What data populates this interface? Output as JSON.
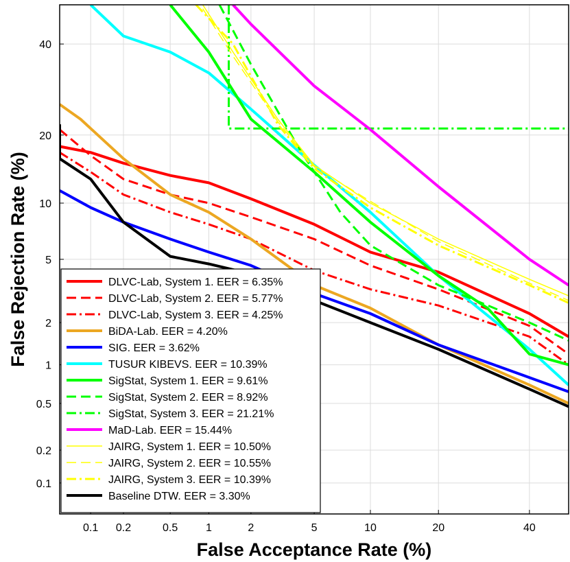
{
  "chart_data": {
    "type": "line",
    "title": "",
    "xlabel": "False Acceptance Rate (%)",
    "ylabel": "False Rejection Rate (%)",
    "scale": "normal-deviate (DET)",
    "xlim": [
      0.05,
      50
    ],
    "ylim": [
      0.05,
      50
    ],
    "x_ticks": [
      0.1,
      0.2,
      0.5,
      1,
      2,
      5,
      10,
      20,
      40
    ],
    "x_tick_labels": [
      "0.1",
      "0.2",
      "0.5",
      "1",
      "2",
      "5",
      "10",
      "20",
      "40"
    ],
    "y_ticks": [
      0.1,
      0.2,
      0.5,
      1,
      2,
      5,
      10,
      20,
      40
    ],
    "y_tick_labels": [
      "0.1",
      "0.2",
      "0.5",
      "1",
      "2",
      "5",
      "10",
      "20",
      "40"
    ],
    "grid": true,
    "legend_position": "bottom-left",
    "series": [
      {
        "name": "DLVC-Lab, System 1. EER = 6.35%",
        "color": "#ff0000",
        "style": "solid",
        "width": 4,
        "points": [
          [
            0.05,
            18
          ],
          [
            0.1,
            17
          ],
          [
            0.2,
            15.3
          ],
          [
            0.5,
            13.5
          ],
          [
            1,
            12.5
          ],
          [
            2,
            10.5
          ],
          [
            5,
            7.8
          ],
          [
            10,
            5.5
          ],
          [
            20,
            4.2
          ],
          [
            40,
            2.3
          ],
          [
            50,
            1.6
          ]
        ]
      },
      {
        "name": "DLVC-Lab, System 2. EER = 5.77%",
        "color": "#ff0000",
        "style": "dashed",
        "width": 3,
        "points": [
          [
            0.05,
            21
          ],
          [
            0.1,
            16.5
          ],
          [
            0.2,
            13
          ],
          [
            0.5,
            11
          ],
          [
            1,
            10
          ],
          [
            2,
            8.5
          ],
          [
            5,
            6.5
          ],
          [
            10,
            4.6
          ],
          [
            20,
            3.3
          ],
          [
            40,
            1.9
          ],
          [
            50,
            1.2
          ]
        ]
      },
      {
        "name": "DLVC-Lab, System 3. EER = 4.25%",
        "color": "#ff0000",
        "style": "dashdot",
        "width": 3,
        "points": [
          [
            0.05,
            17
          ],
          [
            0.1,
            14
          ],
          [
            0.2,
            11
          ],
          [
            0.5,
            9
          ],
          [
            1,
            7.8
          ],
          [
            2,
            6.5
          ],
          [
            5,
            4.3
          ],
          [
            10,
            3.3
          ],
          [
            20,
            2.6
          ],
          [
            40,
            1.6
          ],
          [
            50,
            1
          ]
        ]
      },
      {
        "name": "BiDA-Lab. EER = 4.20%",
        "color": "#eca722",
        "style": "solid",
        "width": 4,
        "points": [
          [
            0.05,
            26
          ],
          [
            0.08,
            23
          ],
          [
            0.2,
            16
          ],
          [
            0.5,
            11
          ],
          [
            1,
            9
          ],
          [
            2,
            6.5
          ],
          [
            5,
            3.5
          ],
          [
            10,
            2.5
          ],
          [
            20,
            1.4
          ],
          [
            40,
            0.7
          ],
          [
            50,
            0.5
          ]
        ]
      },
      {
        "name": "SIG. EER = 3.62%",
        "color": "#0000ff",
        "style": "solid",
        "width": 4,
        "points": [
          [
            0.05,
            11.5
          ],
          [
            0.1,
            9.5
          ],
          [
            0.2,
            8
          ],
          [
            0.5,
            6.5
          ],
          [
            1,
            5.5
          ],
          [
            2,
            4.6
          ],
          [
            5,
            3.1
          ],
          [
            10,
            2.3
          ],
          [
            20,
            1.4
          ],
          [
            40,
            0.8
          ],
          [
            50,
            0.62
          ]
        ]
      },
      {
        "name": "TUSUR KIBEVS. EER = 10.39%",
        "color": "#00ffff",
        "style": "solid",
        "width": 4,
        "points": [
          [
            0.1,
            50
          ],
          [
            0.2,
            42
          ],
          [
            0.5,
            38
          ],
          [
            1,
            33
          ],
          [
            2,
            25
          ],
          [
            5,
            15
          ],
          [
            10,
            9
          ],
          [
            20,
            4
          ],
          [
            40,
            1.3
          ],
          [
            50,
            0.7
          ]
        ]
      },
      {
        "name": "SigStat, System 1. EER = 9.61%",
        "color": "#00ff00",
        "style": "solid",
        "width": 4,
        "points": [
          [
            0.5,
            50
          ],
          [
            1,
            38
          ],
          [
            2,
            23
          ],
          [
            5,
            14
          ],
          [
            10,
            8
          ],
          [
            20,
            4
          ],
          [
            30,
            2.5
          ],
          [
            40,
            1.2
          ],
          [
            50,
            1
          ]
        ]
      },
      {
        "name": "SigStat, System 2. EER = 8.92%",
        "color": "#00ff00",
        "style": "dashed",
        "width": 3,
        "points": [
          [
            1.2,
            50
          ],
          [
            2,
            35
          ],
          [
            4,
            18
          ],
          [
            7,
            9
          ],
          [
            10,
            6
          ],
          [
            20,
            3.5
          ],
          [
            40,
            2
          ],
          [
            50,
            1.5
          ]
        ]
      },
      {
        "name": "SigStat, System 3. EER = 21.21%",
        "color": "#00ff00",
        "style": "dashdot",
        "width": 3,
        "points": [
          [
            1.4,
            50
          ],
          [
            1.4,
            21.21
          ],
          [
            50,
            21.21
          ]
        ]
      },
      {
        "name": "MaD-Lab. EER = 15.44%",
        "color": "#ff00ff",
        "style": "solid",
        "width": 4,
        "points": [
          [
            1.5,
            50
          ],
          [
            2,
            45
          ],
          [
            5,
            30
          ],
          [
            10,
            21
          ],
          [
            20,
            12
          ],
          [
            40,
            5
          ],
          [
            50,
            3.5
          ]
        ]
      },
      {
        "name": "JAIRG, System 1. EER = 10.50%",
        "color": "#ffff00",
        "style": "solid",
        "width": 1.5,
        "points": [
          [
            0.9,
            50
          ],
          [
            1.5,
            38
          ],
          [
            3,
            23
          ],
          [
            5,
            15
          ],
          [
            10,
            10
          ],
          [
            20,
            6.5
          ],
          [
            40,
            3.8
          ],
          [
            50,
            3
          ]
        ]
      },
      {
        "name": "JAIRG, System 2. EER = 10.55%",
        "color": "#ffff00",
        "style": "dashed",
        "width": 1.5,
        "points": [
          [
            0.9,
            49
          ],
          [
            1.5,
            37
          ],
          [
            3,
            22.5
          ],
          [
            5,
            14.8
          ],
          [
            10,
            10.2
          ],
          [
            20,
            6.3
          ],
          [
            40,
            3.6
          ],
          [
            50,
            2.8
          ]
        ]
      },
      {
        "name": "JAIRG, System 3. EER = 10.39%",
        "color": "#ffff00",
        "style": "dashdot",
        "width": 3,
        "points": [
          [
            0.8,
            50
          ],
          [
            1.5,
            40
          ],
          [
            3,
            22
          ],
          [
            5,
            14.5
          ],
          [
            10,
            9.5
          ],
          [
            20,
            6
          ],
          [
            40,
            3.5
          ],
          [
            50,
            2.7
          ]
        ]
      },
      {
        "name": "Baseline DTW. EER = 3.30%",
        "color": "#000000",
        "style": "solid",
        "width": 4,
        "points": [
          [
            0.05,
            22
          ],
          [
            0.05,
            16
          ],
          [
            0.1,
            13
          ],
          [
            0.2,
            8
          ],
          [
            0.5,
            5.2
          ],
          [
            1,
            4.7
          ],
          [
            2,
            4.1
          ],
          [
            5,
            2.8
          ],
          [
            10,
            2
          ],
          [
            20,
            1.3
          ],
          [
            40,
            0.65
          ],
          [
            50,
            0.47
          ]
        ]
      }
    ]
  }
}
